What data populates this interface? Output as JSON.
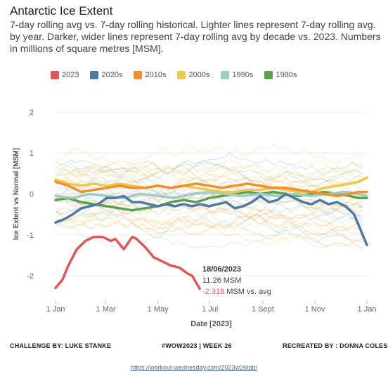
{
  "header": {
    "title": "Antarctic Ice Extent",
    "subtitle": "7-day rolling avg vs. 7-day rolling historical. Lighter lines represent 7-day rolling avg. by year. Darker, wider lines represent 7-day rolling avg by decade vs. 2023. Numbers in millions of square metres [MSM]."
  },
  "chart_data": {
    "type": "line",
    "title": "Antarctic Ice Extent",
    "xlabel": "Date [2023]",
    "ylabel": "Ice Extent vs Normal [MSM]",
    "x_ticks": [
      "1 Jan",
      "1 Mar",
      "1 May",
      "1 Jul",
      "1 Sept",
      "1 Nov",
      "1 Jan"
    ],
    "x_tick_days": [
      0,
      59,
      120,
      181,
      243,
      304,
      365
    ],
    "y_ticks": [
      -2,
      -1,
      0,
      1,
      2
    ],
    "ylim": [
      -2.6,
      2.6
    ],
    "grid": "horizontal",
    "legend_position": "top",
    "series": [
      {
        "name": "2023",
        "color": "#e15759",
        "x": [
          0,
          8,
          15,
          25,
          35,
          45,
          55,
          65,
          70,
          80,
          90,
          95,
          105,
          115,
          125,
          135,
          145,
          155,
          160,
          169
        ],
        "values": [
          -2.3,
          -2.1,
          -1.75,
          -1.35,
          -1.15,
          -1.05,
          -1.05,
          -1.15,
          -1.1,
          -1.35,
          -1.05,
          -1.1,
          -1.3,
          -1.55,
          -1.65,
          -1.75,
          -1.8,
          -1.95,
          -2.0,
          -2.318
        ]
      },
      {
        "name": "2020s",
        "color": "#4e79a7",
        "x": [
          0,
          10,
          20,
          30,
          40,
          50,
          60,
          70,
          80,
          90,
          100,
          110,
          120,
          130,
          140,
          150,
          160,
          170,
          180,
          190,
          200,
          210,
          220,
          230,
          240,
          250,
          260,
          270,
          280,
          290,
          300,
          310,
          320,
          330,
          340,
          350,
          358,
          365
        ],
        "values": [
          -0.7,
          -0.62,
          -0.5,
          -0.35,
          -0.3,
          -0.25,
          -0.1,
          -0.1,
          -0.05,
          -0.2,
          -0.2,
          -0.25,
          -0.3,
          -0.25,
          -0.3,
          -0.25,
          -0.3,
          -0.25,
          -0.3,
          -0.25,
          -0.2,
          -0.35,
          -0.3,
          -0.2,
          -0.05,
          -0.2,
          -0.15,
          0.0,
          -0.1,
          -0.2,
          -0.25,
          -0.15,
          -0.25,
          -0.2,
          -0.3,
          -0.5,
          -0.9,
          -1.25
        ]
      },
      {
        "name": "2010s",
        "color": "#f28e2b",
        "x": [
          0,
          15,
          30,
          45,
          60,
          75,
          90,
          105,
          120,
          135,
          150,
          165,
          180,
          195,
          210,
          225,
          240,
          255,
          270,
          285,
          300,
          315,
          330,
          345,
          355,
          365
        ],
        "values": [
          0.3,
          0.2,
          0.05,
          0.1,
          0.15,
          0.2,
          0.15,
          0.15,
          0.2,
          0.15,
          0.2,
          0.25,
          0.2,
          0.15,
          0.2,
          0.25,
          0.2,
          0.15,
          0.15,
          0.1,
          0.05,
          0.0,
          -0.05,
          0.0,
          0.05,
          0.05
        ]
      },
      {
        "name": "2000s",
        "color": "#edc948",
        "x": [
          0,
          15,
          30,
          45,
          60,
          75,
          90,
          105,
          120,
          135,
          150,
          165,
          180,
          195,
          210,
          225,
          240,
          255,
          270,
          285,
          300,
          315,
          330,
          345,
          355,
          365
        ],
        "values": [
          0.35,
          0.25,
          0.2,
          0.25,
          0.2,
          0.25,
          0.2,
          0.15,
          0.2,
          0.15,
          0.2,
          0.15,
          0.1,
          0.05,
          0.05,
          0.1,
          0.1,
          0.15,
          0.1,
          0.05,
          0.05,
          0.15,
          0.2,
          0.25,
          0.3,
          0.4
        ]
      },
      {
        "name": "1990s",
        "color": "#a0cbc9",
        "x": [
          0,
          20,
          40,
          60,
          80,
          100,
          120,
          140,
          160,
          180,
          200,
          220,
          240,
          260,
          280,
          300,
          320,
          340,
          355,
          365
        ],
        "values": [
          -0.05,
          -0.1,
          0.0,
          -0.05,
          -0.1,
          0.0,
          -0.05,
          -0.1,
          0.0,
          0.05,
          0.0,
          -0.05,
          0.0,
          -0.05,
          0.0,
          -0.05,
          0.0,
          0.05,
          0.0,
          -0.05
        ]
      },
      {
        "name": "1980s",
        "color": "#59a14f",
        "x": [
          0,
          15,
          30,
          45,
          60,
          75,
          90,
          105,
          120,
          135,
          150,
          165,
          180,
          195,
          210,
          225,
          240,
          255,
          270,
          285,
          300,
          315,
          330,
          345,
          355,
          365
        ],
        "values": [
          -0.15,
          -0.1,
          -0.2,
          -0.25,
          -0.3,
          -0.35,
          -0.4,
          -0.35,
          -0.3,
          -0.2,
          -0.15,
          -0.2,
          -0.1,
          -0.05,
          0.0,
          0.05,
          0.0,
          0.05,
          0.0,
          -0.05,
          0.0,
          0.05,
          0.0,
          -0.05,
          -0.1,
          -0.1
        ]
      }
    ],
    "tooltip": {
      "date": "18/06/2023",
      "extent": "11.26 MSM",
      "diff": "-2.318",
      "diff_suffix": " MSM vs. avg"
    }
  },
  "footer": {
    "challenge": "CHALLENGE BY: LUKE STANKE",
    "week": "#WOW2023 | WEEK 26",
    "recreated": "RECREATED BY : DONNA COLES",
    "url": "https://workout-wednesday.com/2023w26tab/"
  }
}
